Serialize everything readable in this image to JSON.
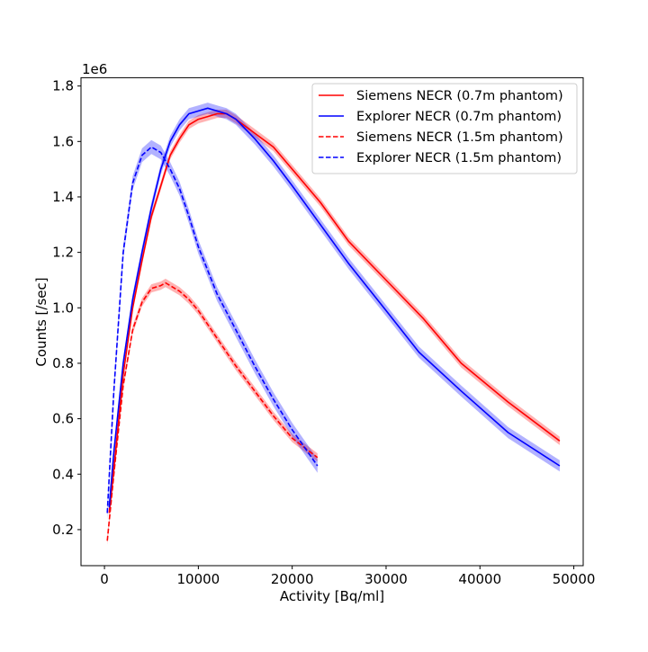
{
  "chart_data": {
    "type": "line",
    "title": "",
    "xlabel": "Activity [Bq/ml]",
    "ylabel": "Counts [/sec]",
    "y_offset_label": "1e6",
    "xlim": [
      -2500,
      51000
    ],
    "ylim": [
      0.07,
      1.83
    ],
    "y_scale": 1000000,
    "x_ticks": [
      0,
      10000,
      20000,
      30000,
      40000,
      50000
    ],
    "x_tick_labels": [
      "0",
      "10000",
      "20000",
      "30000",
      "40000",
      "50000"
    ],
    "y_ticks": [
      0.2,
      0.4,
      0.6,
      0.8,
      1.0,
      1.2,
      1.4,
      1.6,
      1.8
    ],
    "y_tick_labels": [
      "0.2",
      "0.4",
      "0.6",
      "0.8",
      "1.0",
      "1.2",
      "1.4",
      "1.6",
      "1.8"
    ],
    "grid": false,
    "legend_position": "top-right",
    "series": [
      {
        "name": "Siemens NECR (0.7m phantom)",
        "color": "#ff0000",
        "line_style": "solid",
        "x": [
          500,
          1000,
          2000,
          3000,
          4000,
          5000,
          6000,
          7000,
          8000,
          9000,
          10000,
          11000,
          12000,
          13000,
          14000,
          16000,
          18000,
          20000,
          23000,
          26000,
          30000,
          34000,
          38000,
          43000,
          48500
        ],
        "y": [
          0.26,
          0.42,
          0.76,
          1.0,
          1.17,
          1.33,
          1.44,
          1.55,
          1.61,
          1.66,
          1.68,
          1.69,
          1.7,
          1.7,
          1.68,
          1.63,
          1.58,
          1.5,
          1.38,
          1.24,
          1.1,
          0.96,
          0.8,
          0.66,
          0.52
        ],
        "band": 0.015
      },
      {
        "name": "Explorer NECR (0.7m phantom)",
        "color": "#0000ff",
        "line_style": "solid",
        "x": [
          500,
          1000,
          2000,
          3000,
          4000,
          5000,
          6000,
          7000,
          8000,
          9000,
          10000,
          11000,
          12000,
          13000,
          14000,
          16000,
          18000,
          20000,
          23000,
          26000,
          30000,
          33500,
          38000,
          43000,
          48500
        ],
        "y": [
          0.28,
          0.48,
          0.8,
          1.03,
          1.2,
          1.36,
          1.5,
          1.6,
          1.66,
          1.7,
          1.71,
          1.72,
          1.71,
          1.7,
          1.68,
          1.61,
          1.53,
          1.44,
          1.3,
          1.16,
          0.99,
          0.84,
          0.7,
          0.55,
          0.43
        ],
        "band": 0.02
      },
      {
        "name": "Siemens NECR (1.5m phantom)",
        "color": "#ff0000",
        "line_style": "dashed",
        "x": [
          300,
          1000,
          2000,
          3000,
          4000,
          5000,
          6000,
          6500,
          7000,
          8000,
          9000,
          10000,
          12000,
          14000,
          16000,
          18000,
          20000,
          22700
        ],
        "y": [
          0.16,
          0.4,
          0.72,
          0.92,
          1.02,
          1.07,
          1.08,
          1.09,
          1.08,
          1.06,
          1.03,
          0.99,
          0.89,
          0.79,
          0.7,
          0.61,
          0.53,
          0.46
        ],
        "band": 0.015
      },
      {
        "name": "Explorer NECR (1.5m phantom)",
        "color": "#0000ff",
        "line_style": "dashed",
        "x": [
          300,
          1000,
          2000,
          3000,
          4000,
          5000,
          6000,
          7000,
          8000,
          9000,
          10000,
          12000,
          14000,
          16000,
          18000,
          20000,
          22700
        ],
        "y": [
          0.26,
          0.7,
          1.2,
          1.45,
          1.55,
          1.58,
          1.56,
          1.5,
          1.43,
          1.33,
          1.22,
          1.05,
          0.92,
          0.79,
          0.67,
          0.56,
          0.43
        ],
        "band": 0.025
      }
    ]
  }
}
